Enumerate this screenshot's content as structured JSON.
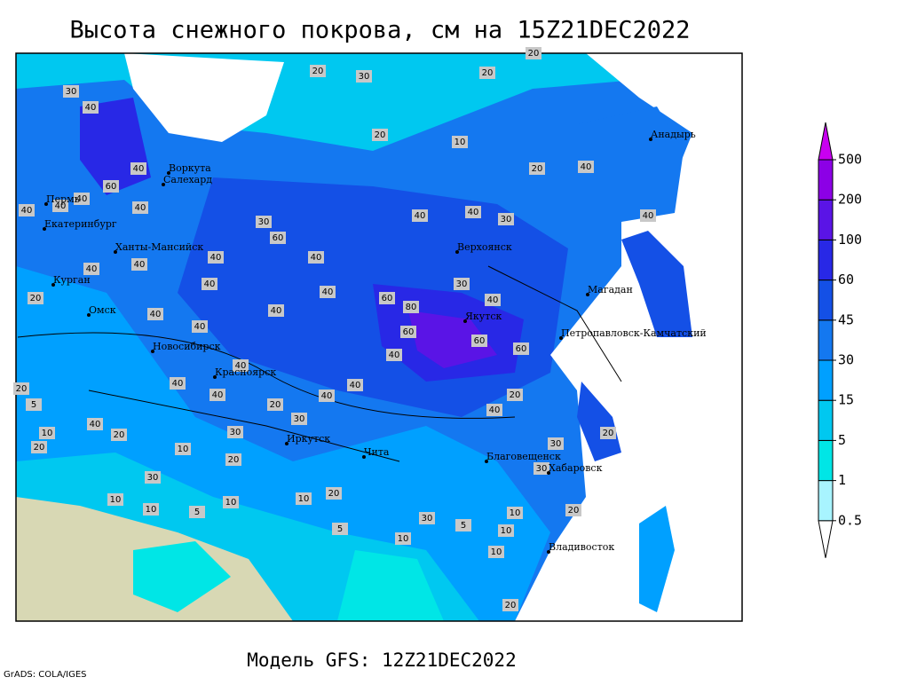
{
  "title": "Высота снежного покрова, см на 15Z21DEC2022",
  "footer": "Модель GFS: 12Z21DEC2022",
  "credit": "GrADS: COLA/IGES",
  "colorbar": {
    "levels": [
      0.5,
      1,
      5,
      15,
      30,
      45,
      60,
      100,
      200,
      500
    ],
    "colors": [
      "#ffffff",
      "#a8f4ff",
      "#00e6e6",
      "#00c8f0",
      "#00a0ff",
      "#1478f0",
      "#1450e6",
      "#2828e6",
      "#5a14e6",
      "#8c00e6",
      "#c800f0"
    ]
  },
  "cities": [
    "Воркута",
    "Салехард",
    "Пермь",
    "Екатеринбург",
    "Ханты-Мансийск",
    "Курган",
    "Омск",
    "Новосибирск",
    "Красноярск",
    "Иркутск",
    "Чита",
    "Верхоянск",
    "Якутск",
    "Магадан",
    "Петропавловск-Камчатский",
    "Анадырь",
    "Благовещенск",
    "Хабаровск",
    "Владивосток"
  ],
  "contour_labels": [
    30,
    40,
    20,
    30,
    20,
    20,
    20,
    10,
    40,
    60,
    40,
    40,
    40,
    40,
    30,
    60,
    40,
    40,
    30,
    20,
    40,
    40,
    40,
    40,
    40,
    40,
    20,
    40,
    40,
    40,
    40,
    40,
    60,
    80,
    60,
    30,
    40,
    60,
    60,
    40,
    40,
    40,
    20,
    30,
    40,
    40,
    40,
    40,
    20,
    20,
    5,
    10,
    20,
    40,
    20,
    10,
    30,
    20,
    30,
    10,
    10,
    5,
    10,
    10,
    20,
    5,
    10,
    30,
    5,
    10,
    10,
    30,
    30,
    20,
    10,
    20,
    20
  ]
}
